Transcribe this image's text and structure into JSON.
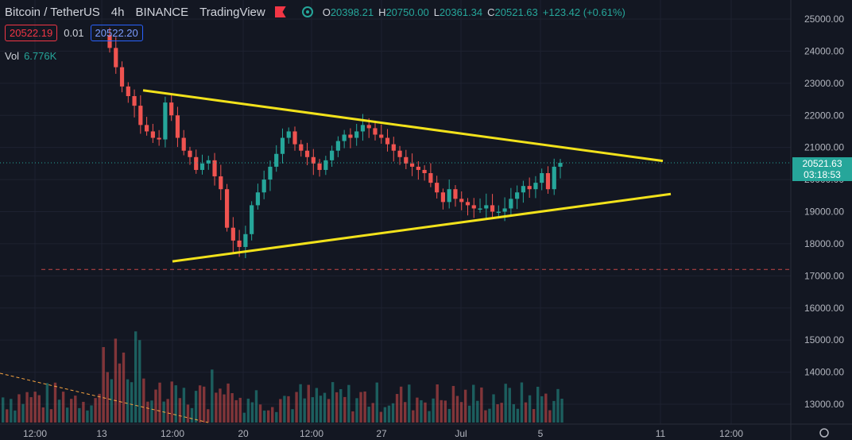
{
  "header": {
    "symbol": "Bitcoin / TetherUS",
    "interval": "4h",
    "exchange": "BINANCE",
    "platform": "TradingView",
    "ohlc": {
      "o_label": "O",
      "o": "20398.21",
      "h_label": "H",
      "h": "20750.00",
      "l_label": "L",
      "l": "20361.34",
      "c_label": "C",
      "c": "20521.63",
      "change": "+123.42 (+0.61%)"
    }
  },
  "quotes": {
    "bid": "20522.19",
    "spread": "0.01",
    "ask": "20522.20"
  },
  "volume": {
    "label": "Vol",
    "value": "6.776K"
  },
  "price_label": {
    "price": "20521.63",
    "countdown": "03:18:53"
  },
  "colors": {
    "bg": "#131722",
    "up": "#26a69a",
    "down": "#ef5350",
    "trend": "#f2e21b",
    "grid": "#1e2230"
  },
  "chart_data": {
    "type": "candlestick",
    "y_ticks": [
      "25000.00",
      "24000.00",
      "23000.00",
      "22000.00",
      "21000.00",
      "20000.00",
      "19000.00",
      "18000.00",
      "17000.00",
      "16000.00",
      "15000.00",
      "14000.00",
      "13000.00"
    ],
    "x_ticks": [
      "12:00",
      "13",
      "12:00",
      "20",
      "12:00",
      "27",
      "Jul",
      "5",
      "11",
      "12:00"
    ],
    "ylim": [
      12600,
      25350
    ],
    "close_series": [
      24100,
      23500,
      22900,
      22600,
      22300,
      21700,
      21500,
      21300,
      21250,
      22400,
      22000,
      21300,
      20900,
      20700,
      20300,
      20500,
      20600,
      20100,
      19700,
      18500,
      18100,
      17900,
      18300,
      19200,
      19600,
      20000,
      20400,
      20800,
      21300,
      21500,
      21100,
      20900,
      20700,
      20500,
      20300,
      20600,
      20900,
      21200,
      21400,
      21300,
      21500,
      21700,
      21600,
      21400,
      21300,
      21100,
      20900,
      20700,
      20500,
      20400,
      20300,
      20200,
      19900,
      19600,
      19300,
      19700,
      19400,
      19300,
      19200,
      19100,
      19100,
      19200,
      19000,
      19000,
      19100,
      19400,
      19600,
      19800,
      19700,
      19900,
      20200,
      19700,
      20400,
      20520
    ],
    "trendlines": [
      {
        "name": "upper",
        "from": [
          "Jun 14",
          22780
        ],
        "to": [
          "Jul 11",
          20580
        ]
      },
      {
        "name": "lower",
        "from": [
          "Jun 15",
          17450
        ],
        "to": [
          "Jul 11",
          19550
        ]
      }
    ],
    "support_level": 17200,
    "current_price": 20521.63
  }
}
